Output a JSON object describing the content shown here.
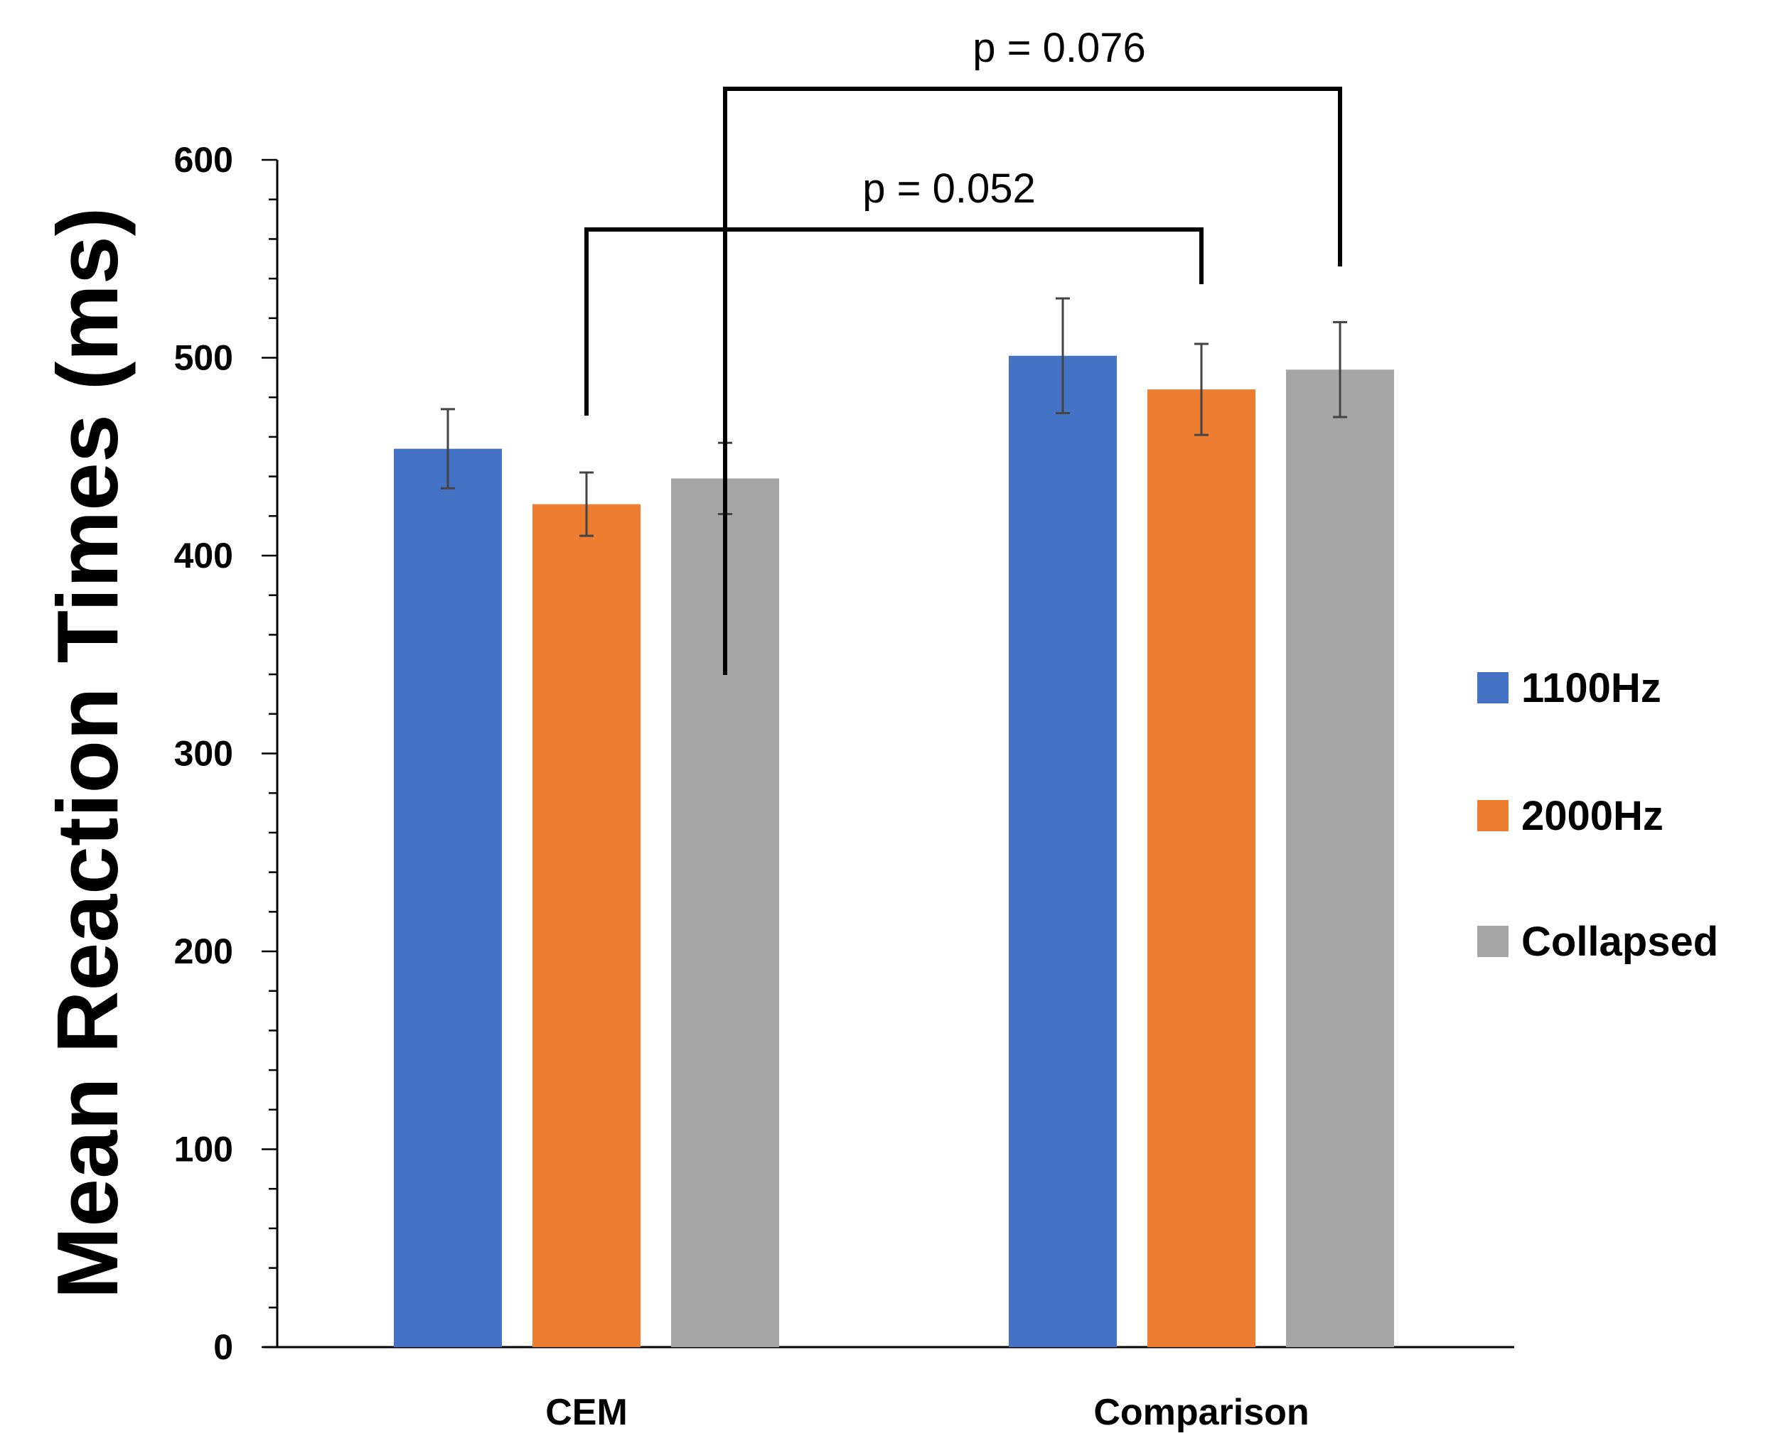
{
  "chart_data": {
    "type": "bar",
    "title": "",
    "xlabel": "",
    "ylabel": "Mean Reaction Times (ms)",
    "ylim": [
      0,
      600
    ],
    "y_ticks": [
      "0",
      "100",
      "200",
      "300",
      "400",
      "500",
      "600"
    ],
    "categories": [
      "CEM",
      "Comparison"
    ],
    "series": [
      {
        "name": "1100Hz",
        "color": "#4472C4",
        "values": [
          454,
          501
        ],
        "errors": [
          20,
          29
        ]
      },
      {
        "name": "2000Hz",
        "color": "#ED7D31",
        "values": [
          426,
          484
        ],
        "errors": [
          16,
          23
        ]
      },
      {
        "name": "Collapsed",
        "color": "#A5A5A5",
        "values": [
          439,
          494
        ],
        "errors": [
          18,
          24
        ]
      }
    ],
    "legend_position": "right",
    "annotations": [
      {
        "label": "p = 0.052",
        "from": {
          "category": 0,
          "series": 1
        },
        "to": {
          "category": 1,
          "series": 1
        }
      },
      {
        "label": "p = 0.076",
        "from": {
          "category": 0,
          "series": 2
        },
        "to": {
          "category": 1,
          "series": 2
        }
      }
    ]
  }
}
